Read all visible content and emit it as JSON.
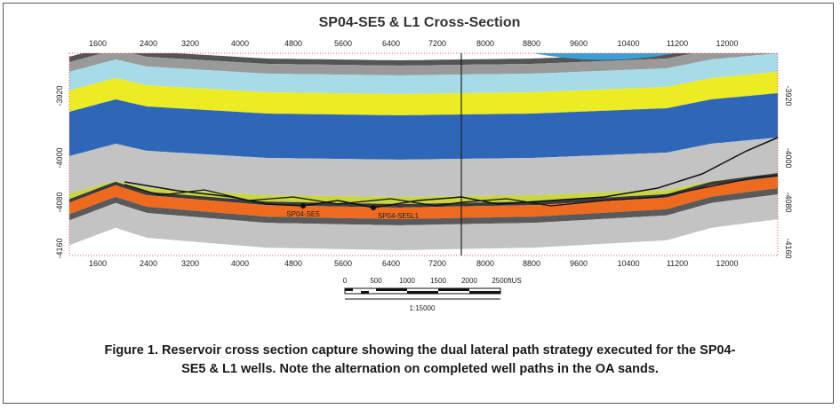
{
  "figure": {
    "title": "SP04-SE5 & L1 Cross-Section",
    "x_axis_labels": [
      "1600",
      "2400",
      "3200",
      "4000",
      "4800",
      "5600",
      "6400",
      "7200",
      "8000",
      "8800",
      "9600",
      "10400",
      "11200",
      "12000"
    ],
    "depth_labels": [
      "-3920",
      "-4000",
      "-4080",
      "-4160"
    ],
    "wells": [
      "SP04-SE5",
      "SP04-SE5L1"
    ],
    "scale_bar": {
      "labels": [
        "0",
        "500",
        "1000",
        "1500",
        "2000",
        "2500ftUS"
      ],
      "ratio": "1:15000"
    }
  },
  "caption": {
    "lines": [
      "Figure 1. Reservoir cross section capture showing the dual lateral path strategy executed for the SP04-",
      "SE5 & L1 wells.  Note the alternation on completed well paths in the OA sands."
    ]
  }
}
